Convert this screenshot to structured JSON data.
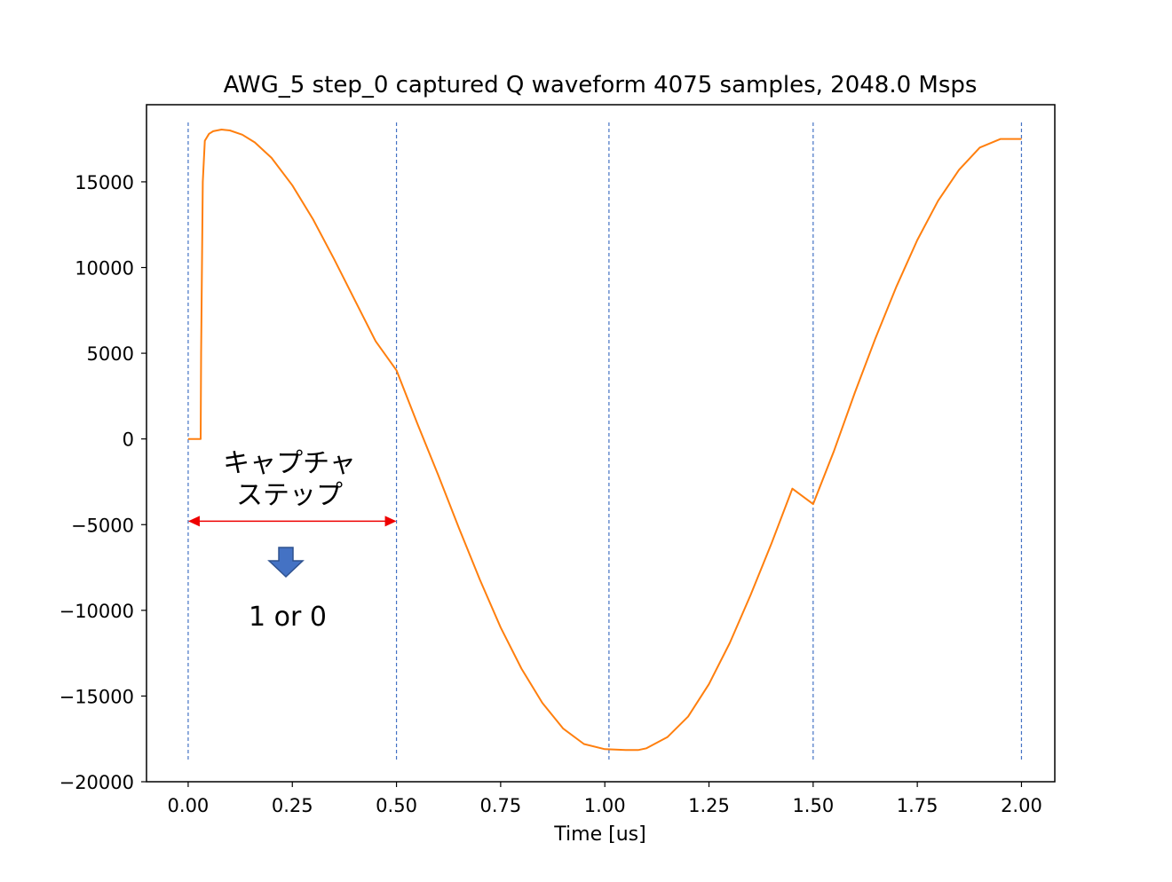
{
  "chart_data": {
    "type": "line",
    "title": "AWG_5 step_0 captured Q waveform 4075 samples, 2048.0 Msps",
    "xlabel": "Time [us]",
    "ylabel": "",
    "xlim": [
      -0.1,
      2.08
    ],
    "ylim": [
      -20000,
      19500
    ],
    "xticks": [
      0.0,
      0.25,
      0.5,
      0.75,
      1.0,
      1.25,
      1.5,
      1.75,
      2.0
    ],
    "xtick_labels": [
      "0.00",
      "0.25",
      "0.50",
      "0.75",
      "1.00",
      "1.25",
      "1.50",
      "1.75",
      "2.00"
    ],
    "yticks": [
      -20000,
      -15000,
      -10000,
      -5000,
      0,
      5000,
      10000,
      15000
    ],
    "ytick_labels": [
      "−20000",
      "−15000",
      "−10000",
      "−5000",
      "0",
      "5000",
      "10000",
      "15000"
    ],
    "grid": false,
    "legend": "none",
    "series": [
      {
        "color": "#ff7f0e",
        "x": [
          0.0,
          0.03,
          0.031,
          0.035,
          0.04,
          0.05,
          0.06,
          0.08,
          0.1,
          0.13,
          0.16,
          0.2,
          0.25,
          0.3,
          0.35,
          0.4,
          0.45,
          0.5,
          0.55,
          0.6,
          0.65,
          0.7,
          0.75,
          0.8,
          0.85,
          0.9,
          0.95,
          1.0,
          1.05,
          1.08,
          1.1,
          1.15,
          1.2,
          1.25,
          1.3,
          1.35,
          1.4,
          1.45,
          1.5,
          1.55,
          1.6,
          1.65,
          1.7,
          1.75,
          1.8,
          1.85,
          1.9,
          1.95,
          2.0
        ],
        "y": [
          0,
          0,
          5000,
          15000,
          17400,
          17800,
          17950,
          18050,
          18000,
          17750,
          17300,
          16400,
          14800,
          12800,
          10500,
          8100,
          5700,
          4000,
          900,
          -2100,
          -5200,
          -8200,
          -11000,
          -13400,
          -15400,
          -16900,
          -17800,
          -18100,
          -18150,
          -18150,
          -18050,
          -17400,
          -16200,
          -14300,
          -11900,
          -9100,
          -6100,
          -2900,
          -3800,
          -700,
          2700,
          5900,
          8900,
          11600,
          13900,
          15700,
          17000,
          17500,
          17500
        ]
      }
    ],
    "vlines": {
      "color": "#4472c4",
      "style": "dashed",
      "x": [
        0.0,
        0.5,
        1.01,
        1.5,
        2.0
      ]
    },
    "annotations": {
      "step_label_line1": "キャプチャ",
      "step_label_line2": "ステップ",
      "step_arrow": {
        "x_start": 0.0,
        "x_end": 0.5,
        "y": -4800,
        "color": "#ee0000"
      },
      "down_arrow_color": "#4472c4",
      "result_label": "1 or 0"
    }
  }
}
